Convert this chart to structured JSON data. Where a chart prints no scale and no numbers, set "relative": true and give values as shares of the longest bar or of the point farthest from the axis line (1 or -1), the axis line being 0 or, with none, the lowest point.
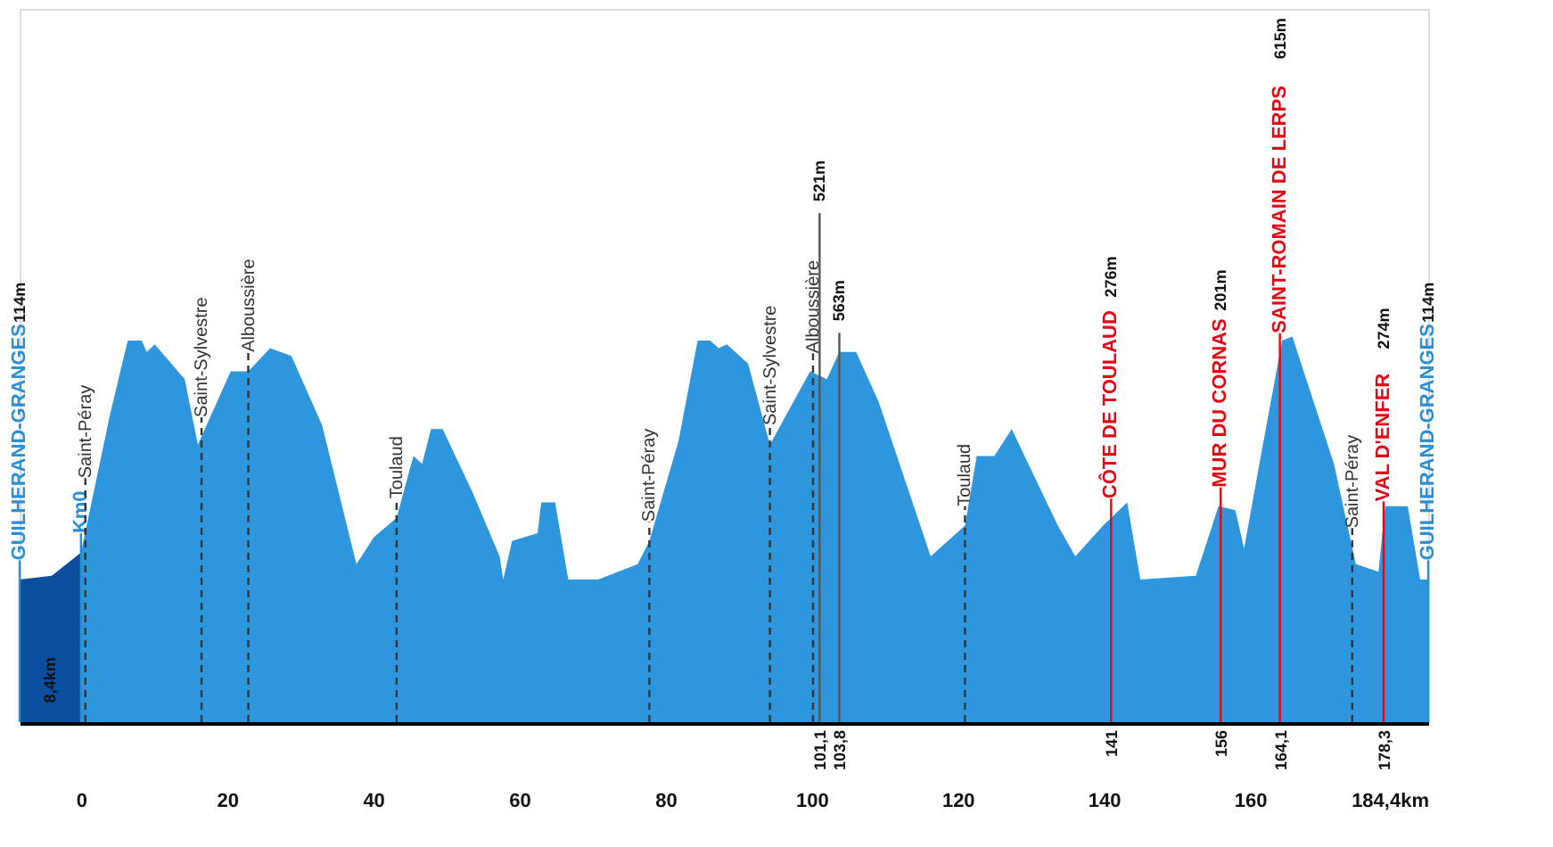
{
  "chart_data": {
    "type": "area",
    "relative": true,
    "grid": false,
    "legend": false,
    "xlim": [
      -8.4,
      184.4
    ],
    "xticks": [
      0,
      20,
      40,
      60,
      80,
      100,
      120,
      140,
      160,
      {
        "value": 184.4,
        "label": "184,4km"
      }
    ],
    "x2lim": [
      -8.4,
      184.4
    ],
    "x2ticks": [
      {
        "value": 101.1,
        "label": "101,1"
      },
      {
        "value": 103.8,
        "label": "103,8"
      },
      141,
      156,
      {
        "value": 164.1,
        "label": "164,1"
      },
      {
        "value": 178.3,
        "label": "178,3"
      }
    ],
    "series": [
      {
        "color": "#0b4f9e",
        "x": [
          -8.4,
          -4,
          0
        ],
        "values": [
          0.37,
          0.38,
          0.44
        ]
      },
      {
        "color": "#2e96dc",
        "x": [
          0,
          4.0,
          6.4,
          8.3,
          9.0,
          10.1,
          14.2,
          16.0,
          20.5,
          22.9,
          25.9,
          28.8,
          33.0,
          37.7,
          40.1,
          43.2,
          45.5,
          46.7,
          47.9,
          49.5,
          53.5,
          57.3,
          57.8,
          59.0,
          62.5,
          63.0,
          64.9,
          66.7,
          70.8,
          76.2,
          77.8,
          81.8,
          84.4,
          86.1,
          87.3,
          88.4,
          91.3,
          94.3,
          99.8,
          102.1,
          103.8,
          106.1,
          109.2,
          116.3,
          121.0,
          122.6,
          125.0,
          127.4,
          133.7,
          136.1,
          139.9,
          143.2,
          145.0,
          152.6,
          155.7,
          158.0,
          159.2,
          161.1,
          164.4,
          165.8,
          171.5,
          174.5,
          177.6,
          178.5,
          181.6,
          183.3,
          184.4
        ],
        "values": [
          0.44,
          0.8,
          0.99,
          0.99,
          0.96,
          0.98,
          0.89,
          0.72,
          0.91,
          0.91,
          0.97,
          0.95,
          0.77,
          0.41,
          0.48,
          0.53,
          0.69,
          0.67,
          0.76,
          0.76,
          0.6,
          0.43,
          0.37,
          0.47,
          0.49,
          0.57,
          0.57,
          0.37,
          0.37,
          0.41,
          0.47,
          0.73,
          0.99,
          0.99,
          0.97,
          0.98,
          0.93,
          0.72,
          0.91,
          0.89,
          0.96,
          0.96,
          0.83,
          0.43,
          0.51,
          0.69,
          0.69,
          0.76,
          0.51,
          0.43,
          0.51,
          0.57,
          0.37,
          0.38,
          0.56,
          0.55,
          0.45,
          0.65,
          0.99,
          1.0,
          0.67,
          0.41,
          0.39,
          0.56,
          0.56,
          0.37,
          0.37
        ]
      }
    ],
    "ref_lines": [
      {
        "axis": "x",
        "value": -8.4,
        "label": "GUILHERAND-GRANGES",
        "color": "#2b8fd6",
        "line_style": "solid"
      },
      {
        "axis": "x",
        "value": 0,
        "label": "Km0",
        "color": "#2b8fd6",
        "line_style": "solid"
      },
      {
        "axis": "x",
        "value": 0.6,
        "label": "Saint-Péray",
        "color": "#333333",
        "line_style": "dashed"
      },
      {
        "axis": "x",
        "value": 16.5,
        "label": "Saint-Sylvestre",
        "color": "#333333",
        "line_style": "dashed"
      },
      {
        "axis": "x",
        "value": 22.9,
        "label": "Alboussière",
        "color": "#333333",
        "line_style": "dashed"
      },
      {
        "axis": "x",
        "value": 43.2,
        "label": "Toulaud",
        "color": "#333333",
        "line_style": "dashed"
      },
      {
        "axis": "x",
        "value": 77.8,
        "label": "Saint-Péray",
        "color": "#333333",
        "line_style": "dashed"
      },
      {
        "axis": "x",
        "value": 94.3,
        "label": "Saint-Sylvestre",
        "color": "#333333",
        "line_style": "dashed"
      },
      {
        "axis": "x",
        "value": 100.2,
        "label": "Alboussière",
        "color": "#333333",
        "line_style": "dashed"
      },
      {
        "axis": "x",
        "value": 101.1,
        "color": "#555555",
        "line_style": "solid"
      },
      {
        "axis": "x",
        "value": 103.8,
        "color": "#555555",
        "line_style": "solid"
      },
      {
        "axis": "x",
        "value": 121.0,
        "label": "Toulaud",
        "color": "#333333",
        "line_style": "dashed"
      },
      {
        "axis": "x",
        "value": 141,
        "label": "CÔTE DE TOULAUD",
        "color": "#e30613",
        "line_style": "solid"
      },
      {
        "axis": "x",
        "value": 156,
        "label": "MUR DU CORNAS",
        "color": "#e30613",
        "line_style": "solid"
      },
      {
        "axis": "x",
        "value": 164.1,
        "label": "SAINT-ROMAIN DE LERPS",
        "color": "#e30613",
        "line_style": "solid"
      },
      {
        "axis": "x",
        "value": 174.0,
        "label": "Saint-Péray",
        "color": "#333333",
        "line_style": "dashed"
      },
      {
        "axis": "x",
        "value": 178.3,
        "label": "VAL D'ENFER",
        "color": "#e30613",
        "line_style": "solid"
      },
      {
        "axis": "x",
        "value": 184.4,
        "label": "GUILHERAND-GRANGES",
        "color": "#2b8fd6",
        "line_style": "solid"
      }
    ],
    "annotations": [
      "114m",
      "8,4km",
      "521m",
      "563m",
      "276m",
      "201m",
      "615m",
      "274m",
      "114m"
    ]
  }
}
